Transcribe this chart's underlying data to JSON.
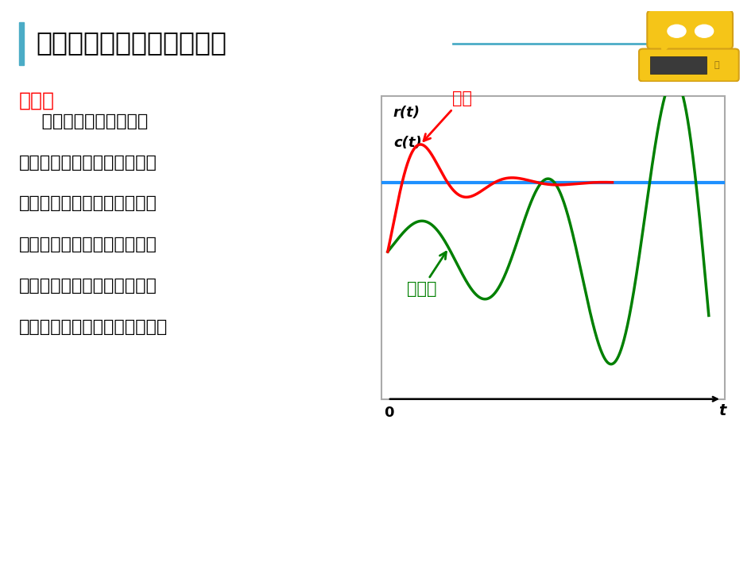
{
  "title": "系统稳定的充分与必要条件",
  "title_color": "#000000",
  "title_bar_color": "#4BACC6",
  "subtitle": "稳定性",
  "subtitle_color": "#FF0000",
  "body_text_lines": [
    "    一个处于某平衡状态的",
    "线性定常系统，若在外部作用",
    "下偏离了原来的平衡状态，而",
    "当外部作用消失后，系统仍能",
    "回到原来的平衡状态，则称该",
    "系统是稳定的，否则为不稳定。"
  ],
  "background_color": "#FFFFFF",
  "icon_color": "#F5C518",
  "icon_border_color": "#D4A017",
  "plot_bg": "#FFFFFF",
  "stable_color": "#008000",
  "unstable_color": "#FF0000",
  "reference_color": "#1E90FF",
  "label_stable": "稳定",
  "label_unstable": "不稳定",
  "ylabel_text1": "r(t)",
  "ylabel_text2": "c(t)",
  "xlabel_text": "t",
  "zero_label": "0",
  "title_fontsize": 24,
  "subtitle_fontsize": 18,
  "body_fontsize": 16,
  "chart_label_fontsize": 13,
  "annot_fontsize": 15
}
